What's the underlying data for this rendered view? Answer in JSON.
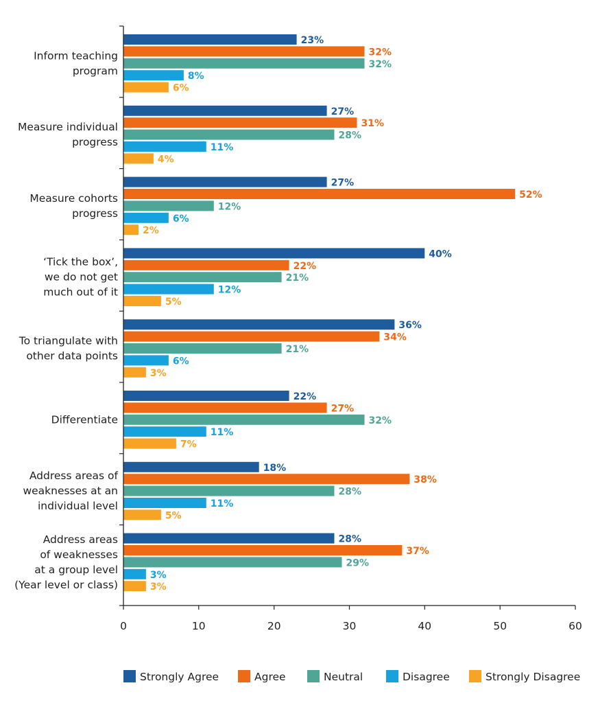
{
  "chart_data": {
    "type": "bar",
    "orientation": "horizontal",
    "title": "",
    "xlabel": "",
    "ylabel": "",
    "xlim": [
      0,
      60
    ],
    "xticks": [
      0,
      10,
      20,
      30,
      40,
      50,
      60
    ],
    "grid": false,
    "legend_position": "bottom",
    "value_suffix": "%",
    "categories": [
      [
        "Inform teaching",
        "program"
      ],
      [
        "Measure individual",
        "progress"
      ],
      [
        "Measure cohorts",
        "progress"
      ],
      [
        "‘Tick the box’,",
        "we do not get",
        "much out of it"
      ],
      [
        "To triangulate with",
        "other data points"
      ],
      [
        "Differentiate"
      ],
      [
        "Address areas of",
        "weaknesses at an",
        "individual level"
      ],
      [
        "Address areas",
        "of weaknesses",
        "at a group level",
        "(Year level or class)"
      ]
    ],
    "series": [
      {
        "name": "Strongly Agree",
        "color": "#1f5c9e",
        "values": [
          23,
          27,
          27,
          40,
          36,
          22,
          18,
          28
        ]
      },
      {
        "name": "Agree",
        "color": "#ee6a16",
        "values": [
          32,
          31,
          52,
          22,
          34,
          27,
          38,
          37
        ]
      },
      {
        "name": "Neutral",
        "color": "#4fa696",
        "values": [
          32,
          28,
          12,
          21,
          21,
          32,
          28,
          29
        ]
      },
      {
        "name": "Disagree",
        "color": "#18a2dd",
        "values": [
          8,
          11,
          6,
          12,
          6,
          11,
          11,
          3
        ]
      },
      {
        "name": "Strongly Disagree",
        "color": "#f7a424",
        "values": [
          6,
          4,
          2,
          5,
          3,
          7,
          5,
          3
        ]
      }
    ]
  }
}
